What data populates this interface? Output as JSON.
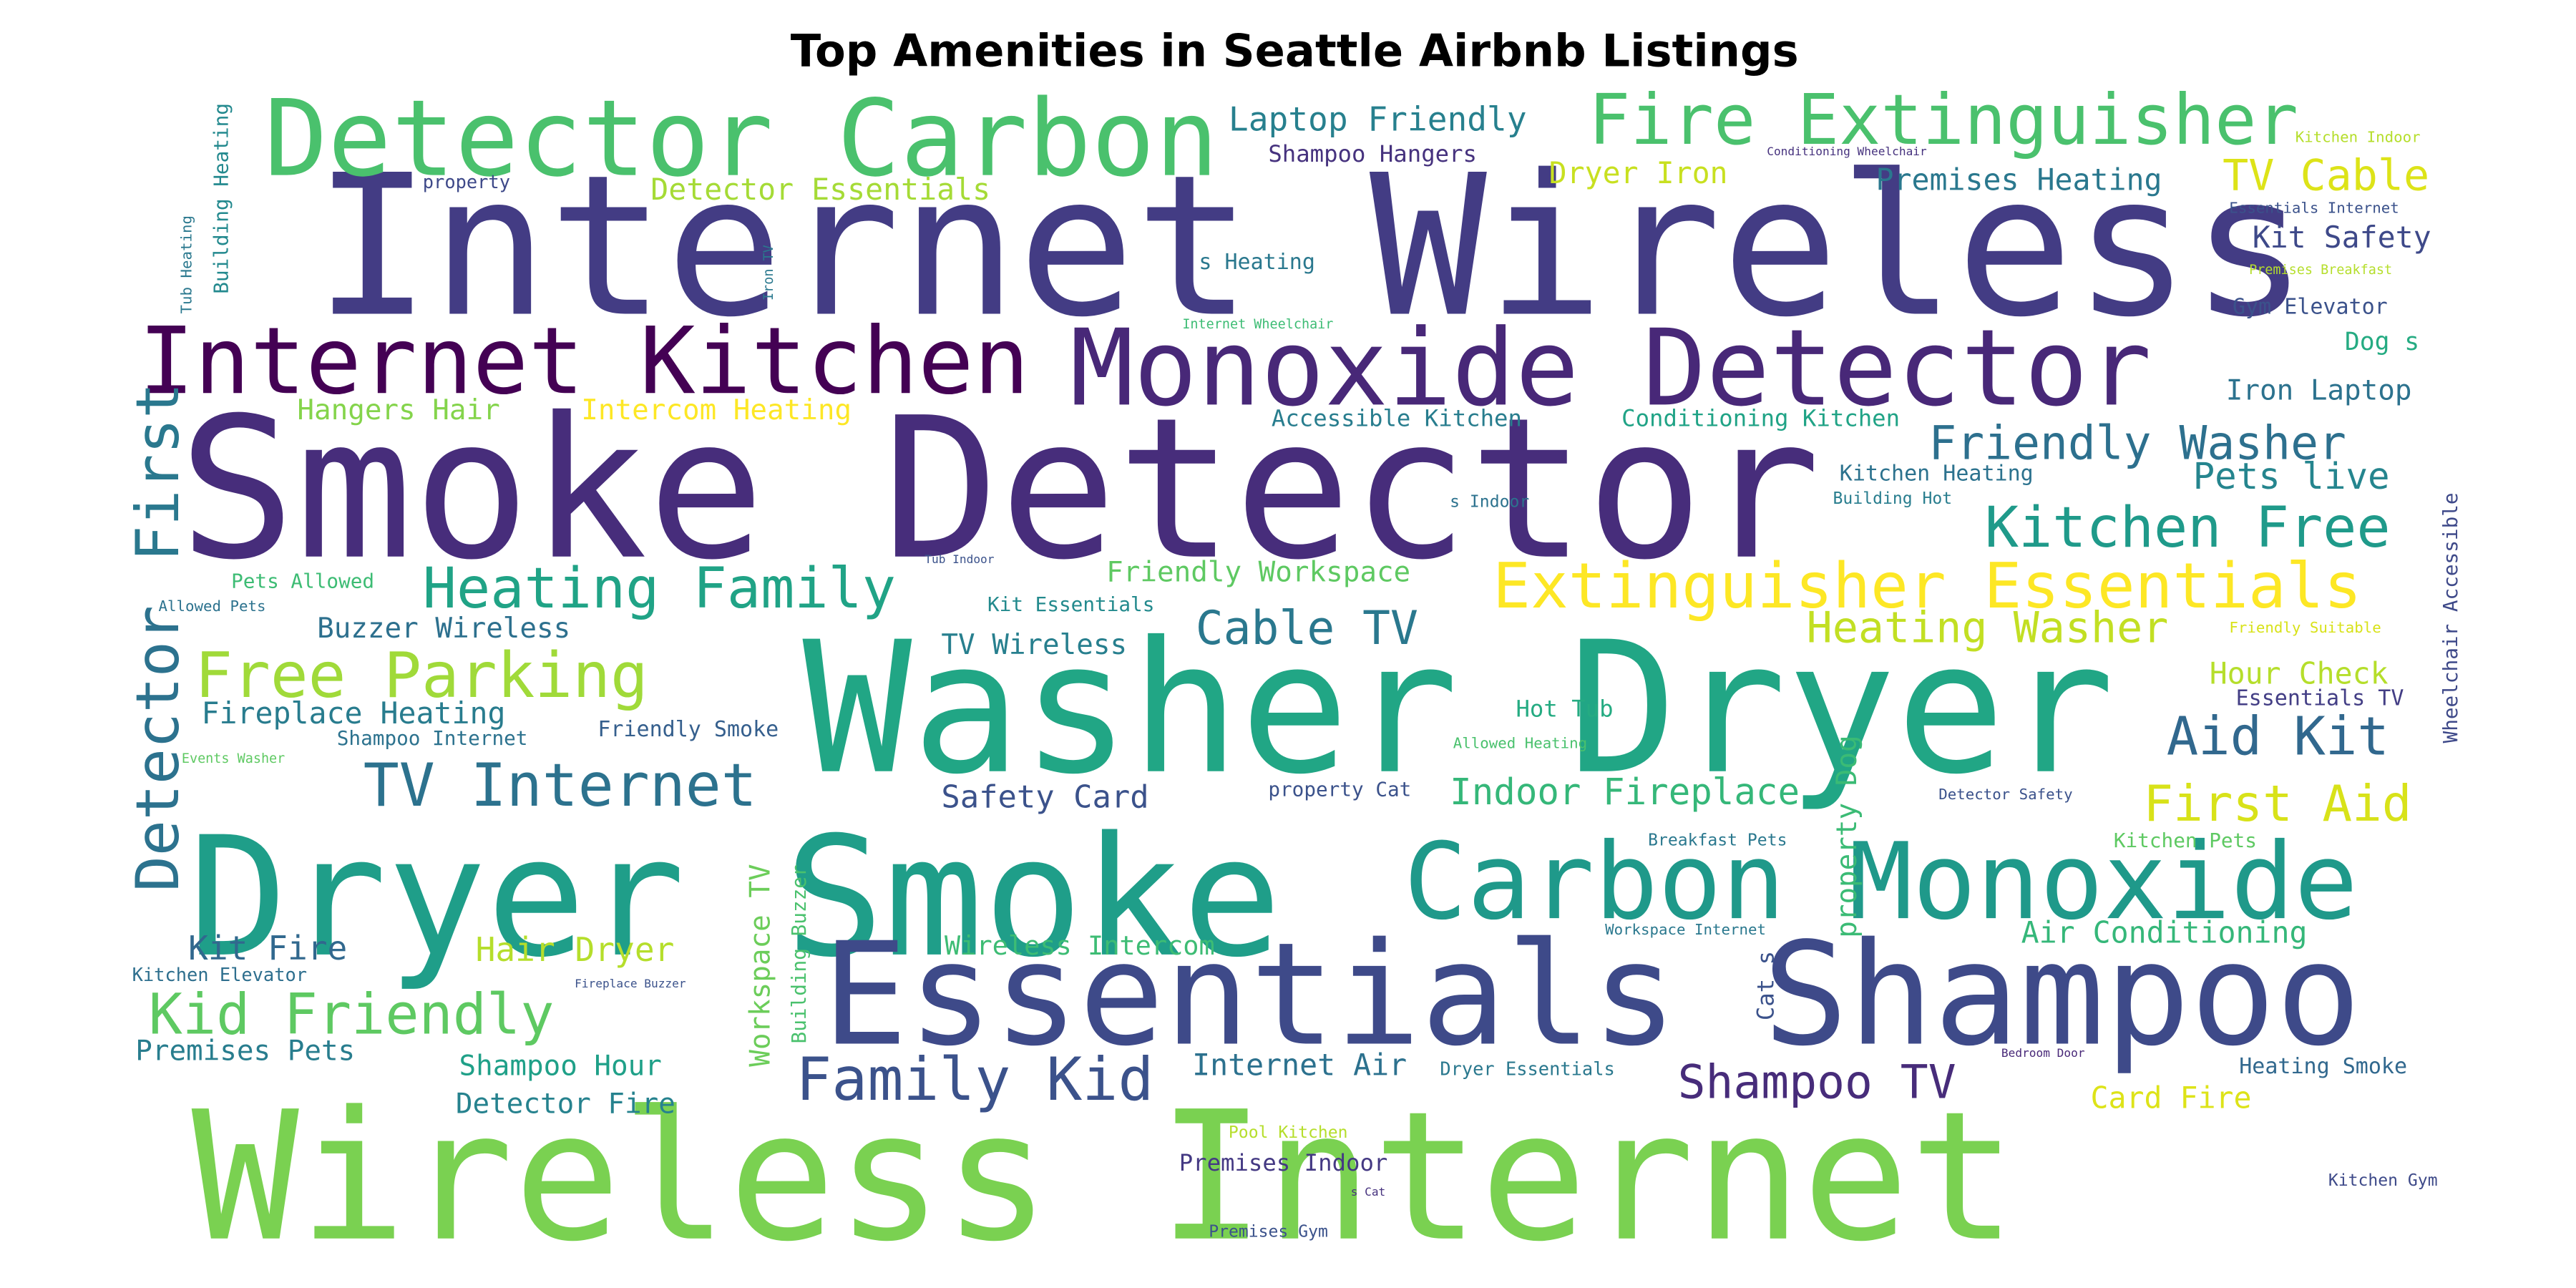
{
  "chart_data": {
    "type": "wordcloud",
    "title": "Top Amenities in Seattle Airbnb Listings",
    "colormap": "viridis",
    "background": "#ffffff",
    "words": [
      {
        "text": "Internet Wireless",
        "weight": 1.0,
        "color": "#433c84"
      },
      {
        "text": "Smoke Detector",
        "weight": 1.0,
        "color": "#472d7b"
      },
      {
        "text": "Washer Dryer",
        "weight": 0.95,
        "color": "#21a685"
      },
      {
        "text": "Wireless Internet",
        "weight": 0.9,
        "color": "#7ad151"
      },
      {
        "text": "Dryer Smoke",
        "weight": 0.9,
        "color": "#1f9e89"
      },
      {
        "text": "Essentials Shampoo",
        "weight": 0.78,
        "color": "#3e4a89"
      },
      {
        "text": "Monoxide Detector",
        "weight": 0.62,
        "color": "#482878"
      },
      {
        "text": "Detector Carbon",
        "weight": 0.6,
        "color": "#4ac16d"
      },
      {
        "text": "Carbon Monoxide",
        "weight": 0.6,
        "color": "#1f998a"
      },
      {
        "text": "Internet Kitchen",
        "weight": 0.55,
        "color": "#440154"
      },
      {
        "text": "Fire Extinguisher",
        "weight": 0.4,
        "color": "#4ac16d"
      },
      {
        "text": "Extinguisher Essentials",
        "weight": 0.35,
        "color": "#fde725"
      },
      {
        "text": "First",
        "weight": 0.35,
        "color": "#2a788e"
      },
      {
        "text": "Detector",
        "weight": 0.35,
        "color": "#2c728e"
      },
      {
        "text": "Family Kid",
        "weight": 0.34,
        "color": "#3b528b"
      },
      {
        "text": "Free Parking",
        "weight": 0.34,
        "color": "#a0da39"
      },
      {
        "text": "Kitchen Free",
        "weight": 0.3,
        "color": "#1f9a8a"
      },
      {
        "text": "Heating Family",
        "weight": 0.3,
        "color": "#20a386"
      },
      {
        "text": "TV Internet",
        "weight": 0.3,
        "color": "#2c728e"
      },
      {
        "text": "Kid Friendly",
        "weight": 0.3,
        "color": "#5ec962"
      },
      {
        "text": "First Aid",
        "weight": 0.28,
        "color": "#d8e219"
      },
      {
        "text": "Aid Kit",
        "weight": 0.28,
        "color": "#31688e"
      },
      {
        "text": "Shampoo TV",
        "weight": 0.27,
        "color": "#472c7a"
      },
      {
        "text": "Friendly Washer",
        "weight": 0.26,
        "color": "#2d708e"
      },
      {
        "text": "Cable TV",
        "weight": 0.25,
        "color": "#2a788e"
      },
      {
        "text": "Heating Washer",
        "weight": 0.24,
        "color": "#c2df23"
      },
      {
        "text": "TV Cable",
        "weight": 0.24,
        "color": "#dde318"
      },
      {
        "text": "Dryer Iron",
        "weight": 0.2,
        "color": "#c8e020"
      },
      {
        "text": "Laptop Friendly",
        "weight": 0.2,
        "color": "#27808e"
      },
      {
        "text": "Detector Essentials",
        "weight": 0.2,
        "color": "#a5db36"
      },
      {
        "text": "Premises Heating",
        "weight": 0.2,
        "color": "#2a788e"
      },
      {
        "text": "Pets live",
        "weight": 0.21,
        "color": "#25858e"
      },
      {
        "text": "Kit Safety",
        "weight": 0.2,
        "color": "#3e4989"
      },
      {
        "text": "Hour Check",
        "weight": 0.2,
        "color": "#b5de2b"
      },
      {
        "text": "Safety Card",
        "weight": 0.2,
        "color": "#3b528b"
      },
      {
        "text": "Indoor Fireplace",
        "weight": 0.2,
        "color": "#35b779"
      },
      {
        "text": "Hair Dryer",
        "weight": 0.2,
        "color": "#b5de2b"
      },
      {
        "text": "Kit Fire",
        "weight": 0.2,
        "color": "#31688e"
      },
      {
        "text": "Air Conditioning",
        "weight": 0.19,
        "color": "#35b779"
      },
      {
        "text": "Card Fire",
        "weight": 0.19,
        "color": "#dde318"
      },
      {
        "text": "Fireplace Heating",
        "weight": 0.19,
        "color": "#287c8e"
      },
      {
        "text": "Buzzer Wireless",
        "weight": 0.18,
        "color": "#2d708e"
      },
      {
        "text": "Friendly Workspace",
        "weight": 0.18,
        "color": "#5ec962"
      },
      {
        "text": "Shampoo Hour",
        "weight": 0.18,
        "color": "#1fa088"
      },
      {
        "text": "Detector Fire",
        "weight": 0.18,
        "color": "#26828e"
      },
      {
        "text": "Premises Pets",
        "weight": 0.18,
        "color": "#287d8e"
      },
      {
        "text": "Wireless Intercom",
        "weight": 0.17,
        "color": "#3dbc74"
      },
      {
        "text": "Internet Air",
        "weight": 0.18,
        "color": "#2c718e"
      },
      {
        "text": "TV Wireless",
        "weight": 0.17,
        "color": "#277f8e"
      },
      {
        "text": "Hangers Hair",
        "weight": 0.17,
        "color": "#84d44b"
      },
      {
        "text": "Intercom Heating",
        "weight": 0.17,
        "color": "#fde725"
      },
      {
        "text": "Workspace TV",
        "weight": 0.17,
        "color": "#6ccd5a"
      },
      {
        "text": "property Dog",
        "weight": 0.17,
        "color": "#3bbb75"
      },
      {
        "text": "Iron Laptop",
        "weight": 0.16,
        "color": "#2c728e"
      },
      {
        "text": "Dog s",
        "weight": 0.15,
        "color": "#25ab82"
      },
      {
        "text": "Hot Tub",
        "weight": 0.14,
        "color": "#25ab82"
      },
      {
        "text": "Premises Indoor",
        "weight": 0.14,
        "color": "#443983"
      },
      {
        "text": "Accessible Kitchen",
        "weight": 0.14,
        "color": "#287d8e"
      },
      {
        "text": "Conditioning Kitchen",
        "weight": 0.14,
        "color": "#20a386"
      },
      {
        "text": "Shampoo Hangers",
        "weight": 0.14,
        "color": "#46327e"
      },
      {
        "text": "Kitchen Heating",
        "weight": 0.14,
        "color": "#2c728e"
      },
      {
        "text": "s Heating",
        "weight": 0.14,
        "color": "#2a788e"
      },
      {
        "text": "Essentials TV",
        "weight": 0.13,
        "color": "#433e85"
      },
      {
        "text": "Gym Elevator",
        "weight": 0.13,
        "color": "#3b528b"
      },
      {
        "text": "Heating Smoke",
        "weight": 0.13,
        "color": "#31688e"
      },
      {
        "text": "Kitchen Pets",
        "weight": 0.12,
        "color": "#5ec962"
      },
      {
        "text": "Friendly Smoke",
        "weight": 0.13,
        "color": "#355f8d"
      },
      {
        "text": "Shampoo Internet",
        "weight": 0.12,
        "color": "#2c728e"
      },
      {
        "text": "Kitchen Elevator",
        "weight": 0.11,
        "color": "#2e6f8e"
      },
      {
        "text": "Dryer Essentials",
        "weight": 0.11,
        "color": "#2a788e"
      },
      {
        "text": "Building Buzzer",
        "weight": 0.11,
        "color": "#4ac16d"
      },
      {
        "text": "Pets Allowed",
        "weight": 0.11,
        "color": "#3dbc74"
      },
      {
        "text": "Kit Essentials",
        "weight": 0.11,
        "color": "#238a8d"
      },
      {
        "text": "property Cat",
        "weight": 0.11,
        "color": "#3b528b"
      },
      {
        "text": "Wheelchair Accessible",
        "weight": 0.11,
        "color": "#3e4989"
      },
      {
        "text": "Building Heating",
        "weight": 0.1,
        "color": "#23898e"
      },
      {
        "text": "Premises Gym",
        "weight": 0.09,
        "color": "#3b528b"
      },
      {
        "text": "Kitchen Gym",
        "weight": 0.08,
        "color": "#3e4a89"
      },
      {
        "text": "Cat s",
        "weight": 0.1,
        "color": "#3b528b"
      },
      {
        "text": "Pool Kitchen",
        "weight": 0.08,
        "color": "#b5de2b"
      },
      {
        "text": "Essentials Internet",
        "weight": 0.08,
        "color": "#3b528b"
      },
      {
        "text": "Detector Safety",
        "weight": 0.08,
        "color": "#3b528b"
      },
      {
        "text": "Breakfast Pets",
        "weight": 0.08,
        "color": "#2a788e"
      },
      {
        "text": "Workspace Internet",
        "weight": 0.08,
        "color": "#2a788e"
      },
      {
        "text": "Building Hot",
        "weight": 0.08,
        "color": "#287d8e"
      },
      {
        "text": "s Indoor",
        "weight": 0.08,
        "color": "#2c728e"
      },
      {
        "text": "Allowed Pets",
        "weight": 0.08,
        "color": "#2c728e"
      },
      {
        "text": "Kitchen Indoor",
        "weight": 0.08,
        "color": "#b5de2b"
      },
      {
        "text": "Premises Breakfast",
        "weight": 0.07,
        "color": "#b5de2b"
      },
      {
        "text": "Friendly Suitable",
        "weight": 0.07,
        "color": "#d8e219"
      },
      {
        "text": "Allowed Heating",
        "weight": 0.07,
        "color": "#4ac16d"
      },
      {
        "text": "Events Washer",
        "weight": 0.07,
        "color": "#5ec962"
      },
      {
        "text": "Internet Wheelchair",
        "weight": 0.07,
        "color": "#3dbc74"
      },
      {
        "text": "property",
        "weight": 0.08,
        "color": "#3e4989"
      },
      {
        "text": "Tub Heating",
        "weight": 0.07,
        "color": "#2a788e"
      },
      {
        "text": "Iron TV",
        "weight": 0.07,
        "color": "#2a788e"
      },
      {
        "text": "Conditioning Wheelchair",
        "weight": 0.06,
        "color": "#46327e"
      },
      {
        "text": "Tub Indoor",
        "weight": 0.06,
        "color": "#3b528b"
      },
      {
        "text": "Fireplace Buzzer",
        "weight": 0.06,
        "color": "#3b528b"
      },
      {
        "text": "Bedroom Door",
        "weight": 0.06,
        "color": "#482878"
      },
      {
        "text": "s Cat",
        "weight": 0.06,
        "color": "#46327e"
      }
    ]
  }
}
